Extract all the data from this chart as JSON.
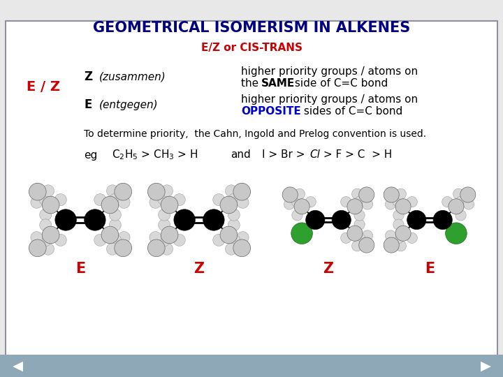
{
  "title": "GEOMETRICAL ISOMERISM IN ALKENES",
  "subtitle": "E/Z or CIS-TRANS",
  "title_color": "#000080",
  "subtitle_color": "#cc0000",
  "bg_color": "#e8e8e8",
  "border_color": "#9090a0",
  "ez_label": "E / Z",
  "ez_color": "#cc0000",
  "z_label": "Z",
  "z_desc": "(zusammen)",
  "z_def1": "higher priority groups / atoms on",
  "z_def2_pre": "the ",
  "z_def2_bold": "SAME",
  "z_def2_post": " side of C=C bond",
  "e_label": "E",
  "e_desc": "(entgegen)",
  "e_def1": "higher priority groups / atoms on",
  "e_def2_bold": "OPPOSITE",
  "e_def2_post": " sides of C=C bond",
  "priority_line": "To determine priority,  the Cahn, Ingold and Prelog convention is used.",
  "eg_label": "eg",
  "eg_and": "and",
  "bottom_labels": [
    "E",
    "Z",
    "Z",
    "E"
  ],
  "bottom_label_color": "#cc0000",
  "nav_color": "#8fa8b8"
}
